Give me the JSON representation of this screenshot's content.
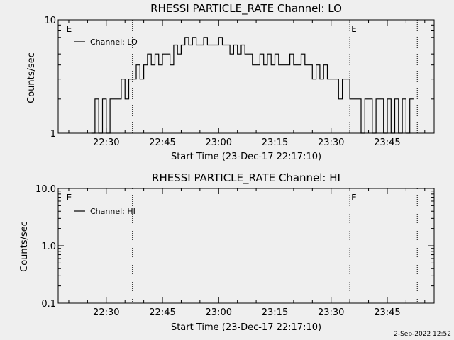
{
  "colors": {
    "background": "#efefef",
    "foreground": "#000000"
  },
  "footer": {
    "date_stamp": "2-Sep-2022 12:52"
  },
  "chart_data": [
    {
      "type": "line",
      "title": "RHESSI PARTICLE_RATE Channel: LO",
      "xlabel": "Start Time (23-Dec-17 22:17:10)",
      "ylabel": "Counts/sec",
      "x_unit": "UT time (HH:MM)",
      "xlim": [
        "22:17:10",
        "23:57:30"
      ],
      "ylim": [
        1,
        10
      ],
      "yscale": "log",
      "x_ticks": [
        "22:30",
        "22:45",
        "23:00",
        "23:15",
        "23:30",
        "23:45"
      ],
      "y_ticks": [
        "1",
        "10"
      ],
      "legend": {
        "position": "top-left",
        "entries": [
          "Channel: LO"
        ]
      },
      "markers": [
        {
          "x": "22:19",
          "label": "E"
        },
        {
          "x": "22:37",
          "label": ""
        },
        {
          "x": "23:35",
          "label": "E"
        },
        {
          "x": "23:53",
          "label": ""
        }
      ],
      "series": [
        {
          "name": "Channel: LO",
          "x": [
            "22:26",
            "22:27",
            "22:28",
            "22:29",
            "22:30",
            "22:31",
            "22:32",
            "22:33",
            "22:34",
            "22:35",
            "22:36",
            "22:37",
            "22:38",
            "22:39",
            "22:40",
            "22:41",
            "22:42",
            "22:43",
            "22:44",
            "22:45",
            "22:46",
            "22:47",
            "22:48",
            "22:49",
            "22:50",
            "22:51",
            "22:52",
            "22:53",
            "22:54",
            "22:55",
            "22:56",
            "22:57",
            "22:58",
            "22:59",
            "23:00",
            "23:01",
            "23:02",
            "23:03",
            "23:04",
            "23:05",
            "23:06",
            "23:07",
            "23:08",
            "23:09",
            "23:10",
            "23:11",
            "23:12",
            "23:13",
            "23:14",
            "23:15",
            "23:16",
            "23:17",
            "23:18",
            "23:19",
            "23:20",
            "23:21",
            "23:22",
            "23:23",
            "23:24",
            "23:25",
            "23:26",
            "23:27",
            "23:28",
            "23:29",
            "23:30",
            "23:31",
            "23:32",
            "23:33",
            "23:34",
            "23:35",
            "23:36",
            "23:37",
            "23:38",
            "23:39",
            "23:40",
            "23:41",
            "23:42",
            "23:43",
            "23:44",
            "23:45",
            "23:46",
            "23:47",
            "23:48",
            "23:49",
            "23:50",
            "23:51"
          ],
          "y": [
            1,
            2,
            1,
            2,
            1,
            2,
            2,
            2,
            3,
            2,
            3,
            3,
            4,
            3,
            4,
            5,
            4,
            5,
            4,
            5,
            5,
            4,
            6,
            5,
            6,
            7,
            6,
            7,
            6,
            6,
            7,
            6,
            6,
            6,
            7,
            6,
            6,
            5,
            6,
            5,
            6,
            5,
            5,
            4,
            4,
            5,
            4,
            5,
            4,
            5,
            4,
            4,
            4,
            5,
            4,
            4,
            5,
            4,
            4,
            3,
            4,
            3,
            4,
            3,
            3,
            3,
            2,
            3,
            3,
            2,
            2,
            2,
            1,
            2,
            2,
            1,
            2,
            2,
            1,
            2,
            1,
            2,
            1,
            2,
            1,
            2
          ]
        }
      ]
    },
    {
      "type": "line",
      "title": "RHESSI PARTICLE_RATE Channel: HI",
      "xlabel": "Start Time (23-Dec-17 22:17:10)",
      "ylabel": "Counts/sec",
      "x_unit": "UT time (HH:MM)",
      "xlim": [
        "22:17:10",
        "23:57:30"
      ],
      "ylim": [
        0.1,
        10
      ],
      "yscale": "log",
      "x_ticks": [
        "22:30",
        "22:45",
        "23:00",
        "23:15",
        "23:30",
        "23:45"
      ],
      "y_ticks": [
        "0.1",
        "1.0",
        "10.0"
      ],
      "legend": {
        "position": "top-left",
        "entries": [
          "Channel: HI"
        ]
      },
      "markers": [
        {
          "x": "22:19",
          "label": "E"
        },
        {
          "x": "22:37",
          "label": ""
        },
        {
          "x": "23:35",
          "label": "E"
        },
        {
          "x": "23:53",
          "label": ""
        }
      ],
      "series": [
        {
          "name": "Channel: HI",
          "x": [],
          "y": []
        }
      ]
    }
  ]
}
